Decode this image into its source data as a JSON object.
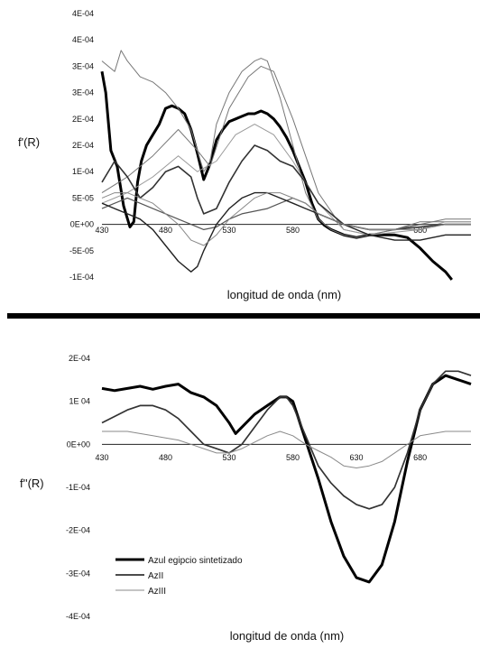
{
  "chart_data": [
    {
      "type": "line",
      "title": "",
      "xlabel": "longitud de onda (nm)",
      "ylabel": "f'(R)",
      "xlim": [
        430,
        720
      ],
      "ylim": [
        -0.0001,
        0.0004
      ],
      "x_tick_values": [
        430,
        480,
        530,
        580,
        630,
        680
      ],
      "x_tick_labels": [
        "430",
        "480",
        "530",
        "580",
        "",
        "680"
      ],
      "y_tick_values": [
        -0.0001,
        -5e-05,
        0,
        5e-05,
        0.0001,
        0.00015,
        0.0002,
        0.00025,
        0.0003,
        0.00035,
        0.0004
      ],
      "y_tick_labels": [
        "-1E-04",
        "-5E-05",
        "0E+00",
        "5E-05",
        "1E-04",
        "2E-04",
        "2E-04",
        "3E-04",
        "3E-04",
        "4E-04",
        "4E-04"
      ],
      "grid": false,
      "series": [
        {
          "width": 3,
          "color": "#000000",
          "x": [
            430,
            433,
            437,
            442,
            447,
            452,
            455,
            458,
            461,
            465,
            470,
            475,
            480,
            485,
            490,
            495,
            500,
            505,
            510,
            515,
            520,
            525,
            530,
            535,
            540,
            545,
            550,
            555,
            560,
            565,
            570,
            575,
            580,
            585,
            590,
            595,
            600,
            605,
            610,
            620,
            630,
            640,
            650,
            660,
            670,
            680,
            690,
            700,
            705
          ],
          "y": [
            0.00029,
            0.00025,
            0.00014,
            0.00011,
            3.5e-05,
            -5e-06,
            5e-06,
            8e-05,
            0.00012,
            0.00015,
            0.00017,
            0.00019,
            0.00022,
            0.000225,
            0.00022,
            0.00021,
            0.00018,
            0.000135,
            8.5e-05,
            0.000115,
            0.00016,
            0.00018,
            0.000195,
            0.0002,
            0.000205,
            0.00021,
            0.00021,
            0.000215,
            0.00021,
            0.0002,
            0.000185,
            0.000165,
            0.00014,
            0.00011,
            8e-05,
            4e-05,
            1e-05,
            -2e-06,
            -1e-05,
            -2e-05,
            -2.5e-05,
            -2e-05,
            -2e-05,
            -2e-05,
            -2.5e-05,
            -4.5e-05,
            -7e-05,
            -9e-05,
            -0.000105
          ]
        },
        {
          "width": 1,
          "color": "#777777",
          "x": [
            430,
            440,
            445,
            450,
            460,
            470,
            480,
            490,
            500,
            505,
            510,
            515,
            520,
            530,
            540,
            550,
            555,
            560,
            570,
            580,
            590,
            600,
            610,
            620,
            630,
            640,
            660,
            680,
            700,
            720
          ],
          "y": [
            0.00031,
            0.00029,
            0.00033,
            0.00031,
            0.00028,
            0.00027,
            0.00025,
            0.00022,
            0.00018,
            0.00014,
            0.0001,
            0.00012,
            0.00019,
            0.00025,
            0.00029,
            0.00031,
            0.000315,
            0.00031,
            0.00024,
            0.00015,
            6e-05,
            1e-05,
            -1e-05,
            -2e-05,
            -2.5e-05,
            -2e-05,
            -1e-05,
            5e-06,
            5e-06,
            5e-06
          ]
        },
        {
          "width": 1,
          "color": "#777777",
          "x": [
            430,
            450,
            470,
            490,
            505,
            515,
            530,
            545,
            555,
            565,
            580,
            600,
            620,
            640,
            660,
            680,
            700,
            720
          ],
          "y": [
            6e-05,
            9e-05,
            0.00013,
            0.00018,
            0.00014,
            0.00011,
            0.00022,
            0.00028,
            0.0003,
            0.00029,
            0.0002,
            6e-05,
            -1e-05,
            -2e-05,
            -1e-05,
            0.0,
            1e-05,
            1e-05
          ]
        },
        {
          "width": 1,
          "color": "#999999",
          "x": [
            430,
            450,
            470,
            490,
            505,
            520,
            535,
            550,
            565,
            580,
            600,
            620,
            640,
            660,
            680,
            700,
            720
          ],
          "y": [
            4e-05,
            6e-05,
            9e-05,
            0.00013,
            0.0001,
            0.00012,
            0.00017,
            0.00019,
            0.00017,
            0.00012,
            4e-05,
            -1e-05,
            -2e-05,
            -1.5e-05,
            -1e-05,
            5e-06,
            5e-06
          ]
        },
        {
          "width": 1.6,
          "color": "#333333",
          "x": [
            430,
            440,
            450,
            460,
            470,
            480,
            490,
            500,
            505,
            510,
            520,
            530,
            540,
            550,
            560,
            570,
            580,
            590,
            600,
            620,
            640,
            660,
            680,
            700,
            720
          ],
          "y": [
            8e-05,
            0.00012,
            9e-05,
            5e-05,
            7e-05,
            0.0001,
            0.00011,
            9e-05,
            5e-05,
            2e-05,
            3e-05,
            8e-05,
            0.00012,
            0.00015,
            0.00014,
            0.00012,
            0.00011,
            8e-05,
            4e-05,
            0.0,
            -1e-05,
            -1e-05,
            -5e-06,
            0.0,
            0.0
          ]
        },
        {
          "width": 1.2,
          "color": "#555555",
          "x": [
            430,
            440,
            450,
            460,
            470,
            480,
            490,
            500,
            510,
            520,
            530,
            540,
            550,
            560,
            570,
            580,
            590,
            600,
            620,
            640,
            660,
            680,
            700,
            720
          ],
          "y": [
            3e-05,
            4e-05,
            5e-05,
            4e-05,
            3e-05,
            2e-05,
            1e-05,
            0.0,
            -1e-05,
            -5e-06,
            1e-05,
            2e-05,
            2.5e-05,
            3e-05,
            4e-05,
            5e-05,
            4e-05,
            2e-05,
            0.0,
            -1e-05,
            -1e-05,
            0.0,
            0.0,
            0.0
          ]
        },
        {
          "width": 1.4,
          "color": "#222222",
          "x": [
            430,
            440,
            450,
            460,
            470,
            480,
            490,
            500,
            505,
            510,
            520,
            530,
            540,
            550,
            560,
            570,
            580,
            590,
            600,
            620,
            640,
            660,
            680,
            700,
            720
          ],
          "y": [
            4e-05,
            3e-05,
            2e-05,
            1e-05,
            -1e-05,
            -4e-05,
            -7e-05,
            -9e-05,
            -8e-05,
            -5e-05,
            0.0,
            3e-05,
            5e-05,
            6e-05,
            6e-05,
            5e-05,
            4e-05,
            3e-05,
            2e-05,
            0.0,
            -2e-05,
            -3e-05,
            -3e-05,
            -2e-05,
            -2e-05
          ]
        },
        {
          "width": 1,
          "color": "#888888",
          "x": [
            430,
            440,
            450,
            460,
            470,
            480,
            490,
            500,
            510,
            520,
            530,
            540,
            550,
            560,
            570,
            580,
            590,
            600,
            620,
            640,
            660,
            680,
            700,
            720
          ],
          "y": [
            5e-05,
            6e-05,
            6e-05,
            5e-05,
            4e-05,
            2e-05,
            0.0,
            -3e-05,
            -4e-05,
            -2e-05,
            1e-05,
            3e-05,
            5e-05,
            6e-05,
            6e-05,
            5e-05,
            4e-05,
            2e-05,
            0.0,
            -1e-05,
            -1e-05,
            -1e-05,
            0.0,
            0.0
          ]
        }
      ]
    },
    {
      "type": "line",
      "title": "",
      "xlabel": "longitud de onda (nm)",
      "ylabel": "f''(R)",
      "xlim": [
        430,
        720
      ],
      "ylim": [
        -0.0004,
        0.0002
      ],
      "x_tick_values": [
        430,
        480,
        530,
        580,
        630,
        680
      ],
      "x_tick_labels": [
        "430",
        "480",
        "530",
        "580",
        "630",
        "680"
      ],
      "y_tick_values": [
        -0.0004,
        -0.0003,
        -0.0002,
        -0.0001,
        0,
        0.0001,
        0.0002
      ],
      "y_tick_labels": [
        "-4E-04",
        "-3E-04",
        "-2E-04",
        "-1E-04",
        "0E+00",
        "1E 04",
        "2E-04"
      ],
      "grid": false,
      "legend_position": "bottom-left",
      "series": [
        {
          "name": "Azul egipcio sintetizado",
          "width": 3,
          "color": "#000000",
          "x": [
            430,
            440,
            450,
            460,
            470,
            480,
            490,
            500,
            510,
            520,
            530,
            535,
            540,
            550,
            560,
            570,
            575,
            580,
            590,
            600,
            610,
            620,
            630,
            640,
            650,
            660,
            670,
            680,
            690,
            700,
            710,
            720
          ],
          "y": [
            0.00013,
            0.000125,
            0.00013,
            0.000135,
            0.000128,
            0.000135,
            0.00014,
            0.00012,
            0.00011,
            9e-05,
            5e-05,
            2.5e-05,
            4e-05,
            7e-05,
            9e-05,
            0.00011,
            0.00011,
            0.0001,
            1e-05,
            -8e-05,
            -0.00018,
            -0.00026,
            -0.00031,
            -0.00032,
            -0.00028,
            -0.00018,
            -4e-05,
            8e-05,
            0.00014,
            0.00016,
            0.00015,
            0.00014
          ]
        },
        {
          "name": "AzII",
          "width": 1.7,
          "color": "#333333",
          "x": [
            430,
            450,
            460,
            470,
            480,
            490,
            500,
            510,
            520,
            530,
            540,
            550,
            560,
            570,
            575,
            580,
            590,
            600,
            610,
            620,
            630,
            640,
            650,
            660,
            670,
            680,
            690,
            700,
            710,
            720
          ],
          "y": [
            5e-05,
            8e-05,
            9e-05,
            9e-05,
            8e-05,
            6e-05,
            3e-05,
            0.0,
            -1e-05,
            -2e-05,
            0.0,
            4e-05,
            8e-05,
            0.00011,
            0.00011,
            9e-05,
            2e-05,
            -5e-05,
            -9e-05,
            -0.00012,
            -0.00014,
            -0.00015,
            -0.00014,
            -0.0001,
            -2e-05,
            8e-05,
            0.00014,
            0.00017,
            0.00017,
            0.00016
          ]
        },
        {
          "name": "AzIII",
          "width": 1,
          "color": "#8a8a8a",
          "x": [
            430,
            450,
            470,
            480,
            490,
            500,
            510,
            520,
            530,
            540,
            550,
            560,
            570,
            580,
            590,
            600,
            610,
            620,
            630,
            640,
            650,
            660,
            670,
            680,
            700,
            720
          ],
          "y": [
            3e-05,
            3e-05,
            2e-05,
            1.5e-05,
            1e-05,
            0.0,
            -1e-05,
            -2e-05,
            -2e-05,
            -1e-05,
            5e-06,
            2e-05,
            3e-05,
            2e-05,
            0.0,
            -1.5e-05,
            -3e-05,
            -5e-05,
            -5.5e-05,
            -5e-05,
            -4e-05,
            -2e-05,
            0.0,
            2e-05,
            3e-05,
            3e-05
          ]
        }
      ]
    }
  ]
}
